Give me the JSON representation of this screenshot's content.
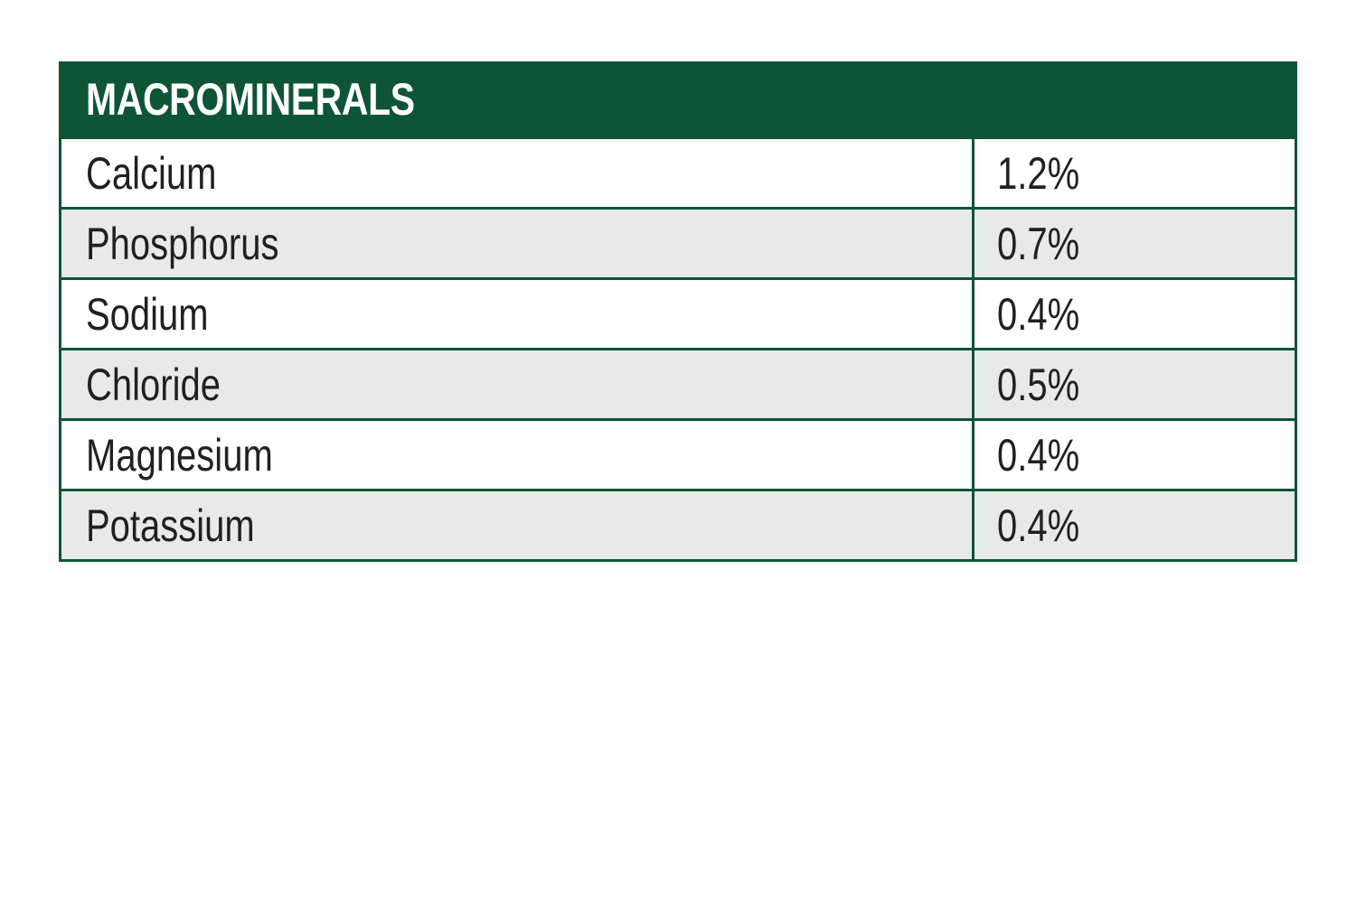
{
  "table": {
    "title": "MACROMINERALS",
    "rows": [
      {
        "name": "Calcium",
        "value": "1.2%"
      },
      {
        "name": "Phosphorus",
        "value": "0.7%"
      },
      {
        "name": "Sodium",
        "value": "0.4%"
      },
      {
        "name": "Chloride",
        "value": "0.5%"
      },
      {
        "name": "Magnesium",
        "value": "0.4%"
      },
      {
        "name": "Potassium",
        "value": "0.4%"
      }
    ]
  },
  "colors": {
    "header_background": "#0d5535",
    "border": "#0d5535",
    "shaded_row": "#e8eae7",
    "text": "#231f20"
  }
}
